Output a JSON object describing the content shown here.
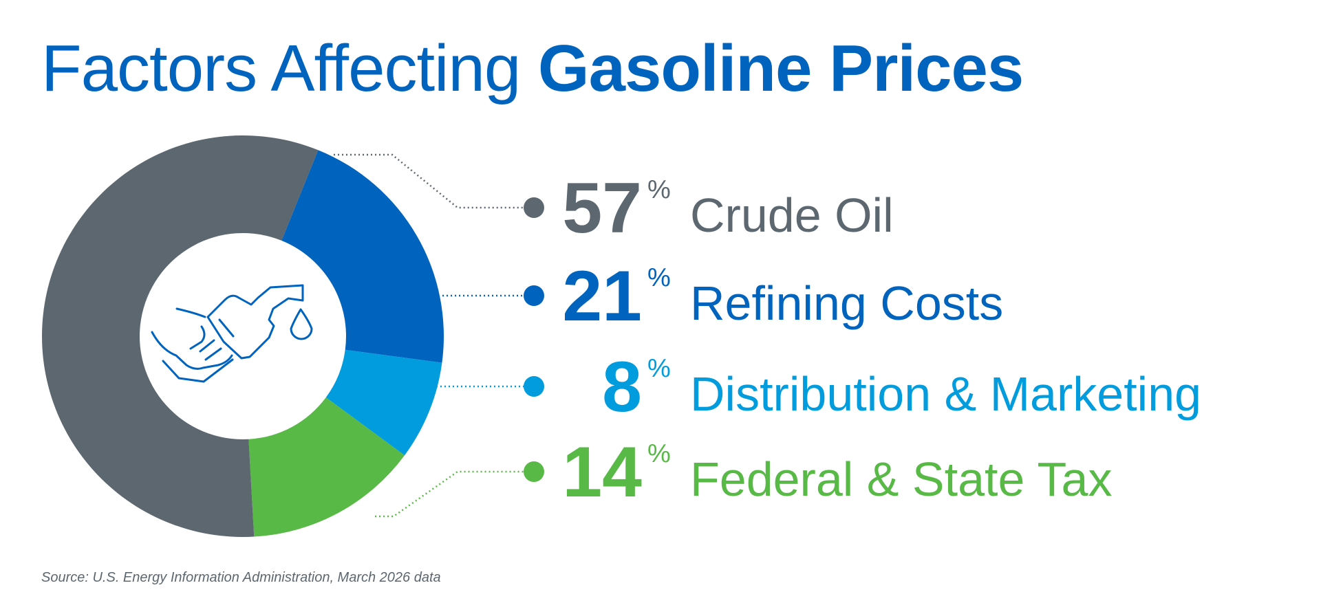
{
  "title": {
    "part1": "Factors Affecting ",
    "part2": "Gasoline Prices"
  },
  "source": "Source: U.S. Energy Information Administration, March 2026 data",
  "icon": "fuel-nozzle-hand-icon",
  "chart_data": {
    "type": "pie",
    "style": "donut",
    "title": "Factors Affecting Gasoline Prices",
    "categories": [
      "Crude Oil",
      "Refining Costs",
      "Distribution & Marketing",
      "Federal & State Tax"
    ],
    "values": [
      57,
      21,
      8,
      14
    ],
    "value_labels": [
      "57",
      "21",
      "8",
      "14"
    ],
    "unit": "%",
    "colors": [
      "#5c6770",
      "#0063be",
      "#009cde",
      "#58b947"
    ],
    "legend": "right"
  }
}
